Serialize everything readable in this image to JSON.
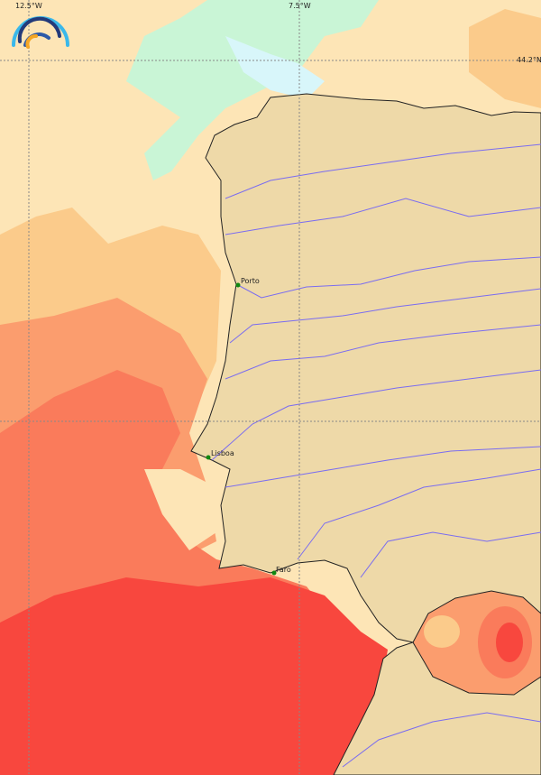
{
  "map": {
    "grid_labels": {
      "lon_west": "12.5°W",
      "lon_east": "7.5°W",
      "lat": "44.2°N"
    },
    "cities": [
      {
        "name": "Porto"
      },
      {
        "name": "Lisboa"
      },
      {
        "name": "Faro"
      }
    ],
    "logo": "rainbow-logo-icon",
    "colors": {
      "land": "#eed9a8",
      "rivers": "#7a6cf0",
      "coast": "#222222",
      "city_marker": "#118811",
      "sea_cold": "#c9f5d6",
      "sea_cool": "#d8f6fa",
      "sea_light": "#fde5b6",
      "sea_mid": "#fbcb8b",
      "sea_warm": "#fb9d6e",
      "sea_hot": "#fa7b5b",
      "sea_hottest": "#f8473e"
    }
  }
}
